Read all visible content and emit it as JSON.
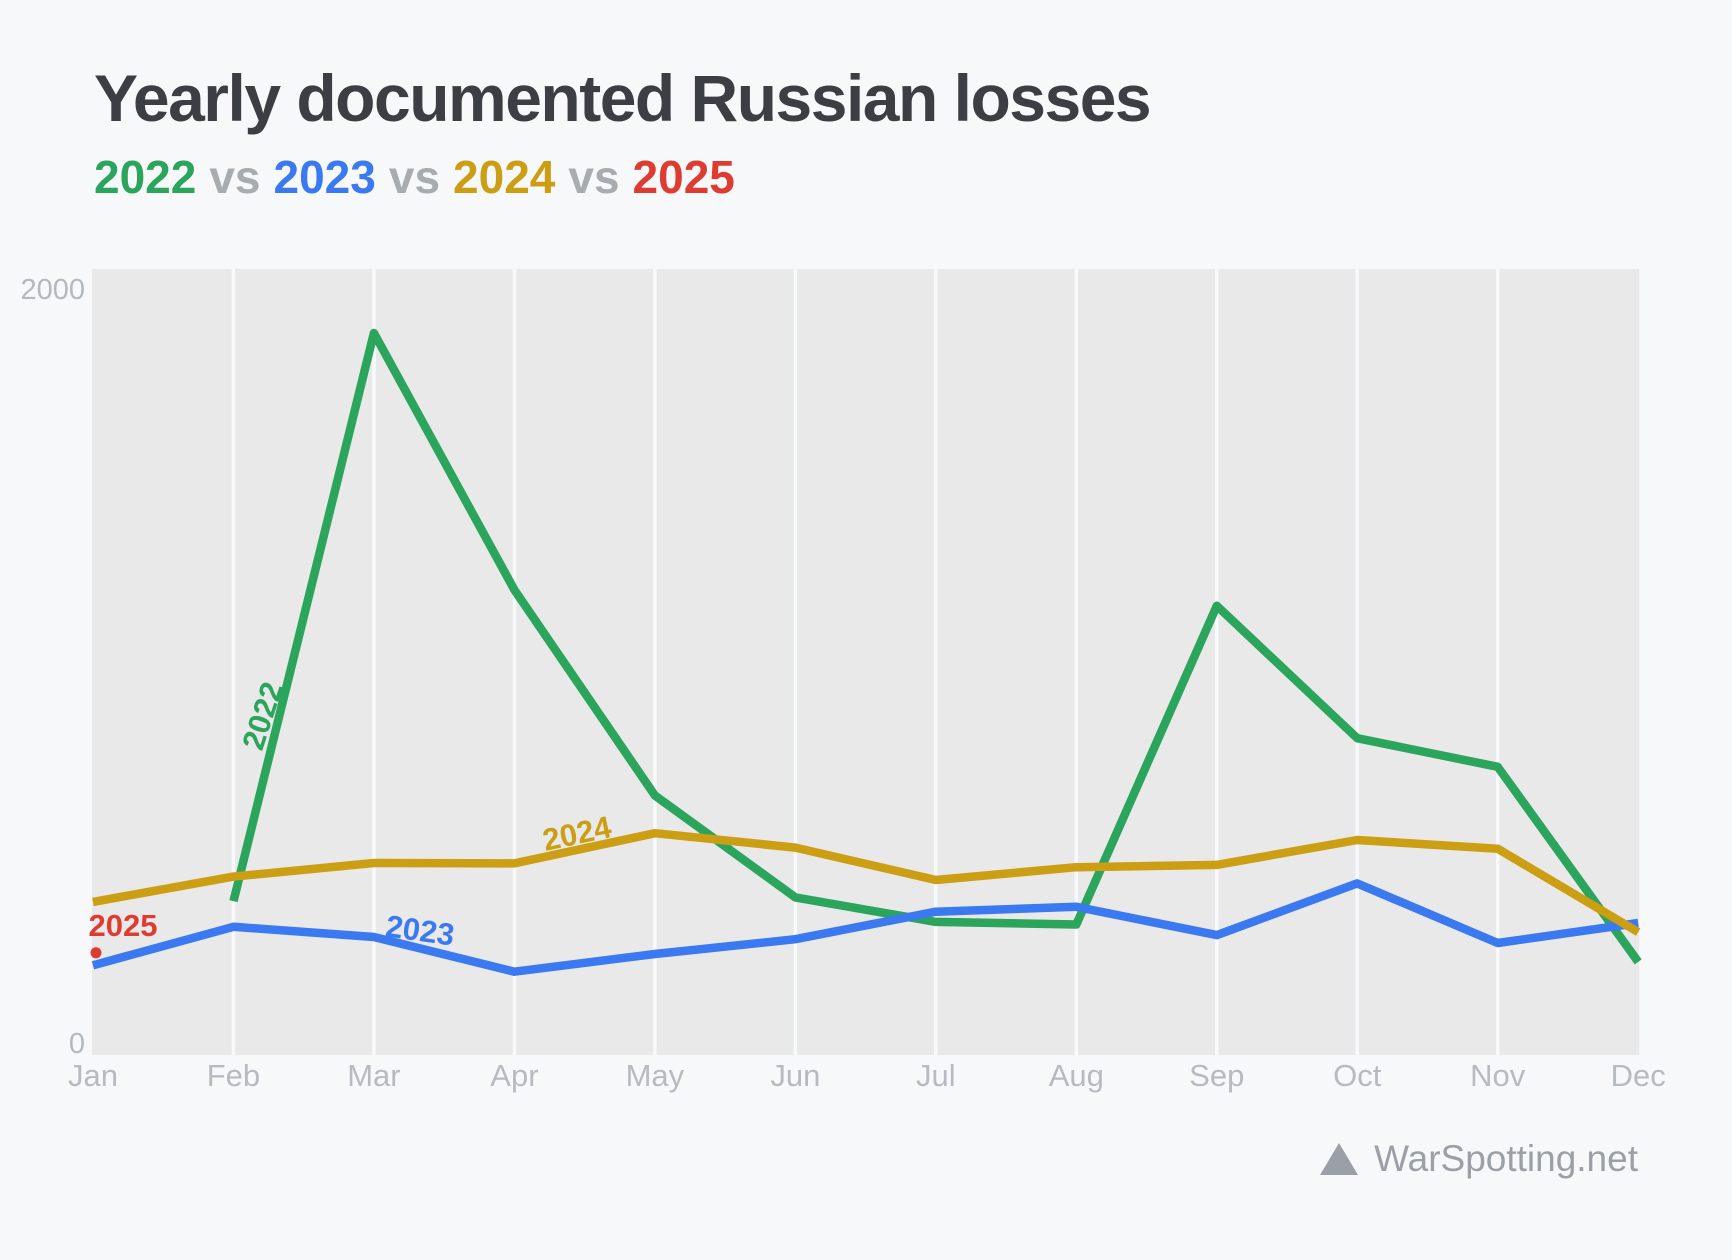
{
  "title": "Yearly documented Russian losses",
  "subtitle": {
    "parts": [
      {
        "text": "2022",
        "color": "#2ba45c"
      },
      {
        "text": "vs",
        "color": "#a7acb1"
      },
      {
        "text": "2023",
        "color": "#3a79f0"
      },
      {
        "text": "vs",
        "color": "#a7acb1"
      },
      {
        "text": "2024",
        "color": "#cb9e14"
      },
      {
        "text": "vs",
        "color": "#a7acb1"
      },
      {
        "text": "2025",
        "color": "#de3b31"
      }
    ]
  },
  "colors": {
    "page_bg": "#f7f8fa",
    "plot_bg": "#e9e9e9",
    "gridline": "#f8f9fa",
    "axis_label": "#b6bbc1",
    "footer": "#9aa0a6",
    "title": "#3b3f44"
  },
  "chart_data": {
    "type": "line",
    "title": "Yearly documented Russian losses",
    "categories": [
      "Jan",
      "Feb",
      "Mar",
      "Apr",
      "May",
      "Jun",
      "Jul",
      "Aug",
      "Sep",
      "Oct",
      "Nov",
      "Dec"
    ],
    "y_axis": {
      "ticks": [
        {
          "label": "2000",
          "value": 2000
        },
        {
          "label": "0",
          "value": 0
        }
      ],
      "ylim": [
        0,
        2000
      ],
      "grid": "vertical month gridlines"
    },
    "legend_position": "inline line labels",
    "series": [
      {
        "name": "2022",
        "color": "#2ba45c",
        "values": [
          null,
          380,
          1886,
          1205,
          660,
          390,
          325,
          318,
          1163,
          812,
          736,
          219
        ]
      },
      {
        "name": "2023",
        "color": "#3a79f0",
        "values": [
          210,
          312,
          285,
          193,
          240,
          279,
          352,
          365,
          290,
          427,
          269,
          322
        ]
      },
      {
        "name": "2024",
        "color": "#cb9e14",
        "values": [
          378,
          445,
          481,
          480,
          560,
          522,
          436,
          470,
          476,
          542,
          519,
          298
        ]
      },
      {
        "name": "2025",
        "color": "#de3b31",
        "values": [
          243,
          null,
          null,
          null,
          null,
          null,
          null,
          null,
          null,
          null,
          null,
          null
        ]
      }
    ]
  },
  "footer": {
    "logo_icon": "triangle-logo-icon",
    "text": "WarSpotting.net"
  }
}
